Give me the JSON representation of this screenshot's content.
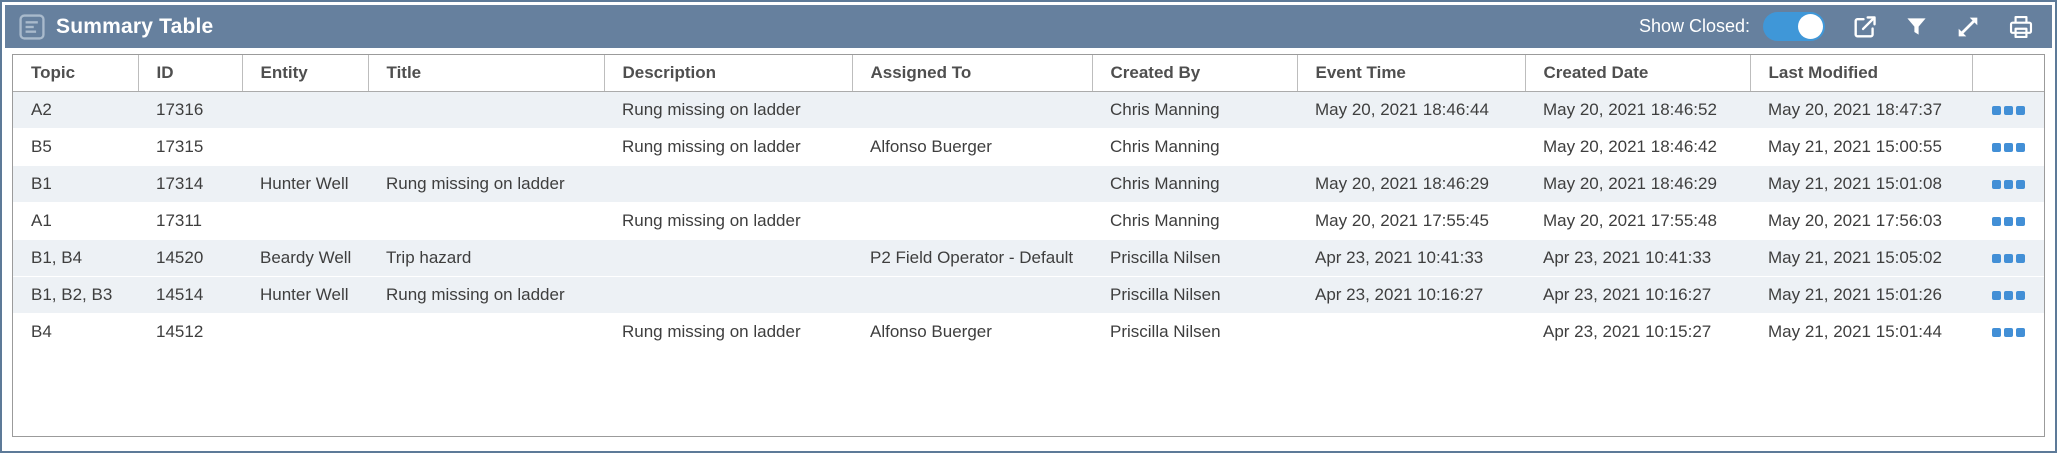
{
  "widget": {
    "title": "Summary Table",
    "show_closed_label": "Show Closed:",
    "show_closed_on": true
  },
  "icons": {
    "titlebar": "summary-table-document-icon",
    "controls": [
      "external-link-icon",
      "filter-icon",
      "expand-icon",
      "print-icon"
    ],
    "row_actions": "more-options-dots-icon"
  },
  "colors": {
    "titlebar_bg": "#66809e",
    "outer_border": "#5d7a98",
    "toggle_track": "#3f97d8",
    "accent_dots": "#428fd6",
    "row_shaded_bg": "#edf1f5",
    "header_text": "#4f4f4f",
    "cell_text": "#3e3e3e"
  },
  "table": {
    "columns": [
      "Topic",
      "ID",
      "Entity",
      "Title",
      "Description",
      "Assigned To",
      "Created By",
      "Event Time",
      "Created Date",
      "Last Modified"
    ],
    "column_keys": [
      "topic",
      "id",
      "entity",
      "title",
      "description",
      "assigned_to",
      "created_by",
      "event_time",
      "created_date",
      "last_modified"
    ],
    "rows": [
      {
        "topic": "A2",
        "id": "17316",
        "entity": "",
        "title": "",
        "description": "Rung missing on ladder",
        "assigned_to": "",
        "created_by": "Chris Manning",
        "event_time": "May 20, 2021 18:46:44",
        "created_date": "May 20, 2021 18:46:52",
        "last_modified": "May 20, 2021 18:47:37",
        "shaded": true
      },
      {
        "topic": "B5",
        "id": "17315",
        "entity": "",
        "title": "",
        "description": "Rung missing on ladder",
        "assigned_to": "Alfonso Buerger",
        "created_by": "Chris Manning",
        "event_time": "",
        "created_date": "May 20, 2021 18:46:42",
        "last_modified": "May 21, 2021 15:00:55",
        "shaded": false
      },
      {
        "topic": "B1",
        "id": "17314",
        "entity": "Hunter Well",
        "title": "Rung missing on ladder",
        "description": "",
        "assigned_to": "",
        "created_by": "Chris Manning",
        "event_time": "May 20, 2021 18:46:29",
        "created_date": "May 20, 2021 18:46:29",
        "last_modified": "May 21, 2021 15:01:08",
        "shaded": true
      },
      {
        "topic": "A1",
        "id": "17311",
        "entity": "",
        "title": "",
        "description": "Rung missing on ladder",
        "assigned_to": "",
        "created_by": "Chris Manning",
        "event_time": "May 20, 2021 17:55:45",
        "created_date": "May 20, 2021 17:55:48",
        "last_modified": "May 20, 2021 17:56:03",
        "shaded": false
      },
      {
        "topic": "B1, B4",
        "id": "14520",
        "entity": "Beardy Well",
        "title": "Trip hazard",
        "description": "",
        "assigned_to": "P2 Field Operator - Default",
        "created_by": "Priscilla Nilsen",
        "event_time": "Apr 23, 2021 10:41:33",
        "created_date": "Apr 23, 2021 10:41:33",
        "last_modified": "May 21, 2021 15:05:02",
        "shaded": true
      },
      {
        "topic": "B1, B2, B3",
        "id": "14514",
        "entity": "Hunter Well",
        "title": "Rung missing on ladder",
        "description": "",
        "assigned_to": "",
        "created_by": "Priscilla Nilsen",
        "event_time": "Apr 23, 2021 10:16:27",
        "created_date": "Apr 23, 2021 10:16:27",
        "last_modified": "May 21, 2021 15:01:26",
        "shaded": true
      },
      {
        "topic": "B4",
        "id": "14512",
        "entity": "",
        "title": "",
        "description": "Rung missing on ladder",
        "assigned_to": "Alfonso Buerger",
        "created_by": "Priscilla Nilsen",
        "event_time": "",
        "created_date": "Apr 23, 2021 10:15:27",
        "last_modified": "May 21, 2021 15:01:44",
        "shaded": false
      }
    ]
  }
}
